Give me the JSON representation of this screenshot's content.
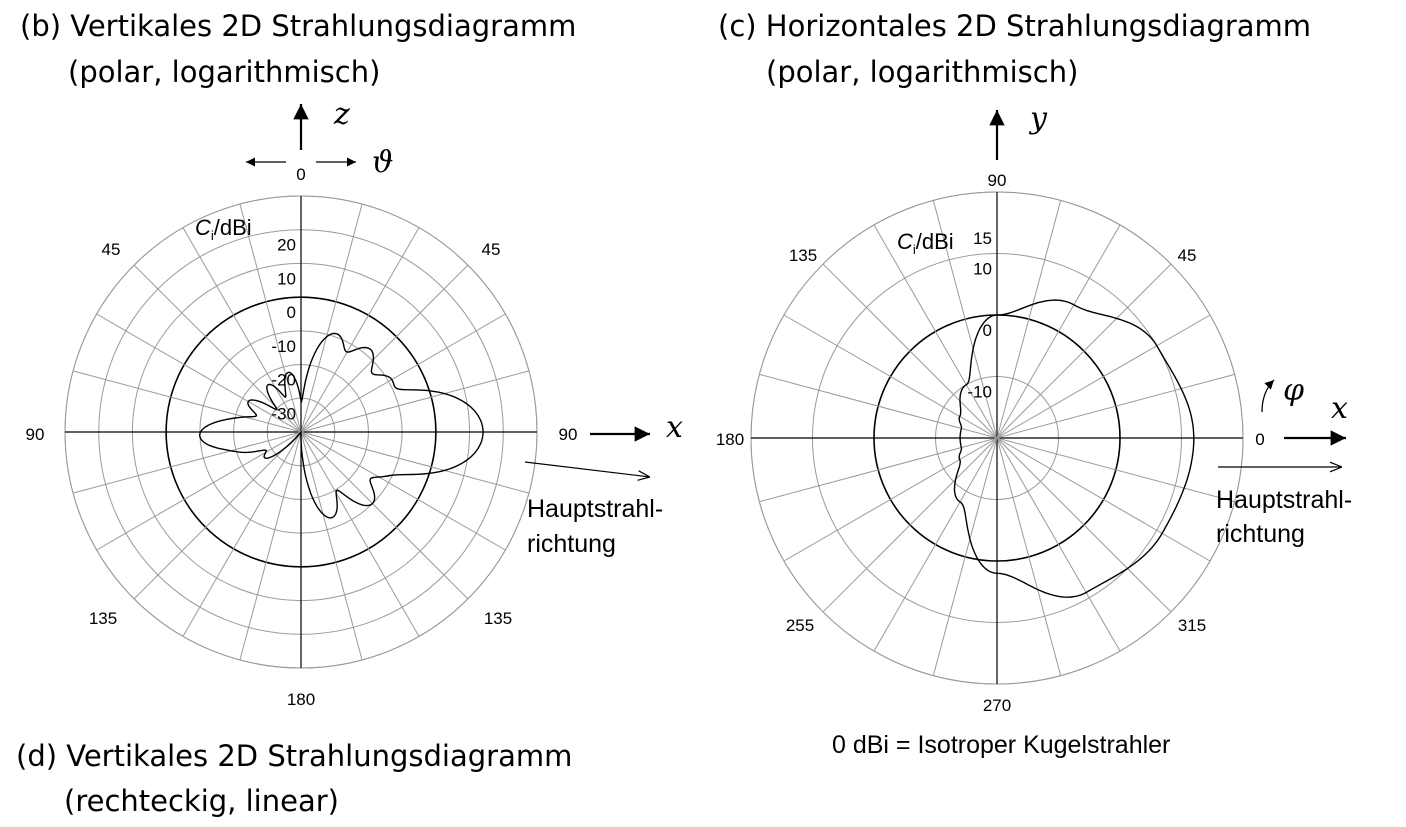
{
  "panel_b": {
    "heading": "(b) Vertikales 2D Strahlungsdiagramm",
    "subheading": "(polar, logarithmisch)"
  },
  "panel_c": {
    "heading": "(c) Horizontales 2D Strahlungsdiagramm",
    "subheading": "(polar, logarithmisch)"
  },
  "panel_d": {
    "heading": "(d) Vertikales 2D Strahlungsdiagramm",
    "subheading": "(rechteckig, linear)"
  },
  "footnote": "0 dBi = Isotroper Kugelstrahler",
  "chart_data": [
    {
      "type": "polar",
      "panel": "b",
      "radial_unit_label": {
        "symbol": "C",
        "subscript": "i",
        "unit": "/dBi"
      },
      "radial_ticks": [
        "20",
        "10",
        "0",
        "-10",
        "-20",
        "-30"
      ],
      "radial_tick_values": [
        20,
        10,
        0,
        -10,
        -20,
        -30
      ],
      "r_range_dBi": [
        -40,
        30
      ],
      "reference_circle_dBi": 0,
      "angle_spokes_deg": 15,
      "angle_labels": {
        "top": "0",
        "upper_left": "45",
        "upper_right": "45",
        "left": "90",
        "right": "90",
        "lower_left": "135",
        "lower_right": "135",
        "bottom": "180"
      },
      "axis_labels": {
        "vertical": "z",
        "horizontal": "x",
        "angle": "ϑ"
      },
      "main_beam_label": [
        "Hauptstrahl-",
        "richtung"
      ],
      "pattern": {
        "x_axis_direction": "right",
        "theta_deg": [
          0,
          10,
          20,
          30,
          40,
          50,
          60,
          70,
          80,
          90,
          100,
          110,
          120,
          130,
          140,
          150,
          160,
          170,
          180,
          -10,
          -20,
          -30,
          -40,
          -50,
          -60,
          -70,
          -80,
          -90,
          -100,
          -110,
          -120,
          -130,
          -140
        ],
        "lobes": [
          {
            "center_deg": 20,
            "peak_dBi": -9
          },
          {
            "center_deg": 40,
            "peak_dBi": -8
          },
          {
            "center_deg": 60,
            "peak_dBi": -9
          },
          {
            "center_deg": 90,
            "peak_dBi": 14
          },
          {
            "center_deg": 115,
            "peak_dBi": -12
          },
          {
            "center_deg": 135,
            "peak_dBi": -10
          },
          {
            "center_deg": 160,
            "peak_dBi": -13
          },
          {
            "center_deg": -12,
            "peak_dBi": -22
          },
          {
            "center_deg": -35,
            "peak_dBi": -23
          },
          {
            "center_deg": -60,
            "peak_dBi": -22
          },
          {
            "center_deg": -80,
            "peak_dBi": -22
          },
          {
            "center_deg": -92,
            "peak_dBi": -10
          },
          {
            "center_deg": -105,
            "peak_dBi": -21
          },
          {
            "center_deg": -125,
            "peak_dBi": -27
          }
        ],
        "floor_dBi": -40
      }
    },
    {
      "type": "polar",
      "panel": "c",
      "radial_unit_label": {
        "symbol": "C",
        "subscript": "i",
        "unit": "/dBi"
      },
      "radial_ticks": [
        "15",
        "10",
        "0",
        "-10"
      ],
      "radial_tick_values": [
        15,
        10,
        0,
        -10
      ],
      "r_range_dBi": [
        -20,
        20
      ],
      "reference_circle_dBi": 0,
      "angle_spokes_deg": 15,
      "angle_labels": {
        "top": "90",
        "upper_left": "135",
        "upper_right": "45",
        "left": "180",
        "right": "0",
        "lower_left": "255",
        "lower_right": "315",
        "bottom": "270"
      },
      "axis_labels": {
        "vertical": "y",
        "horizontal": "x",
        "angle": "φ"
      },
      "main_beam_label": [
        "Hauptstrahl-",
        "richtung"
      ],
      "pattern": {
        "phi_deg": [
          0,
          30,
          60,
          90,
          120,
          150,
          165,
          180,
          195,
          210,
          240,
          270,
          300,
          330,
          360
        ],
        "gain_dBi": [
          12,
          10,
          5,
          0,
          -10,
          -13,
          -14,
          -14,
          -14,
          -13,
          -8,
          2,
          9,
          11,
          12
        ]
      }
    }
  ]
}
